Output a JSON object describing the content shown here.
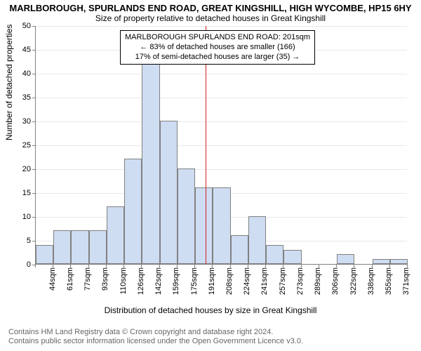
{
  "title_main": "MARLBOROUGH, SPURLANDS END ROAD, GREAT KINGSHILL, HIGH WYCOMBE, HP15 6HY",
  "title_sub": "Size of property relative to detached houses in Great Kingshill",
  "yaxis_label": "Number of detached properties",
  "xaxis_label": "Distribution of detached houses by size in Great Kingshill",
  "chart": {
    "type": "histogram",
    "ylim": [
      0,
      50
    ],
    "ytick_step": 5,
    "yticks": [
      0,
      5,
      10,
      15,
      20,
      25,
      30,
      35,
      40,
      45,
      50
    ],
    "categories": [
      "44sqm",
      "61sqm",
      "77sqm",
      "93sqm",
      "110sqm",
      "126sqm",
      "142sqm",
      "159sqm",
      "175sqm",
      "191sqm",
      "208sqm",
      "224sqm",
      "241sqm",
      "257sqm",
      "273sqm",
      "289sqm",
      "306sqm",
      "322sqm",
      "338sqm",
      "355sqm",
      "371sqm"
    ],
    "values": [
      4,
      7,
      7,
      7,
      12,
      22,
      45,
      30,
      20,
      16,
      16,
      6,
      10,
      4,
      3,
      0,
      0,
      2,
      0,
      1,
      1
    ],
    "bar_color": "#cfddf2",
    "bar_border_color": "#808080",
    "grid_color": "#e9e9e9",
    "axis_color": "#808080",
    "background_color": "#ffffff",
    "bar_width_ratio": 1.0,
    "reference_line": {
      "color": "#d02020",
      "index_after": 9.6
    },
    "annotation": {
      "line1": "MARLBOROUGH SPURLANDS END ROAD: 201sqm",
      "line2": "← 83% of detached houses are smaller (166)",
      "line3": "17% of semi-detached houses are larger (35) →",
      "border_color": "#000000",
      "background": "#ffffff",
      "fontsize": 11
    },
    "title_fontsize": 13,
    "sub_fontsize": 12,
    "tick_fontsize": 11
  },
  "footer": {
    "line1": "Contains HM Land Registry data © Crown copyright and database right 2024.",
    "line2": "Contains public sector information licensed under the Open Government Licence v3.0.",
    "color": "#666666"
  }
}
